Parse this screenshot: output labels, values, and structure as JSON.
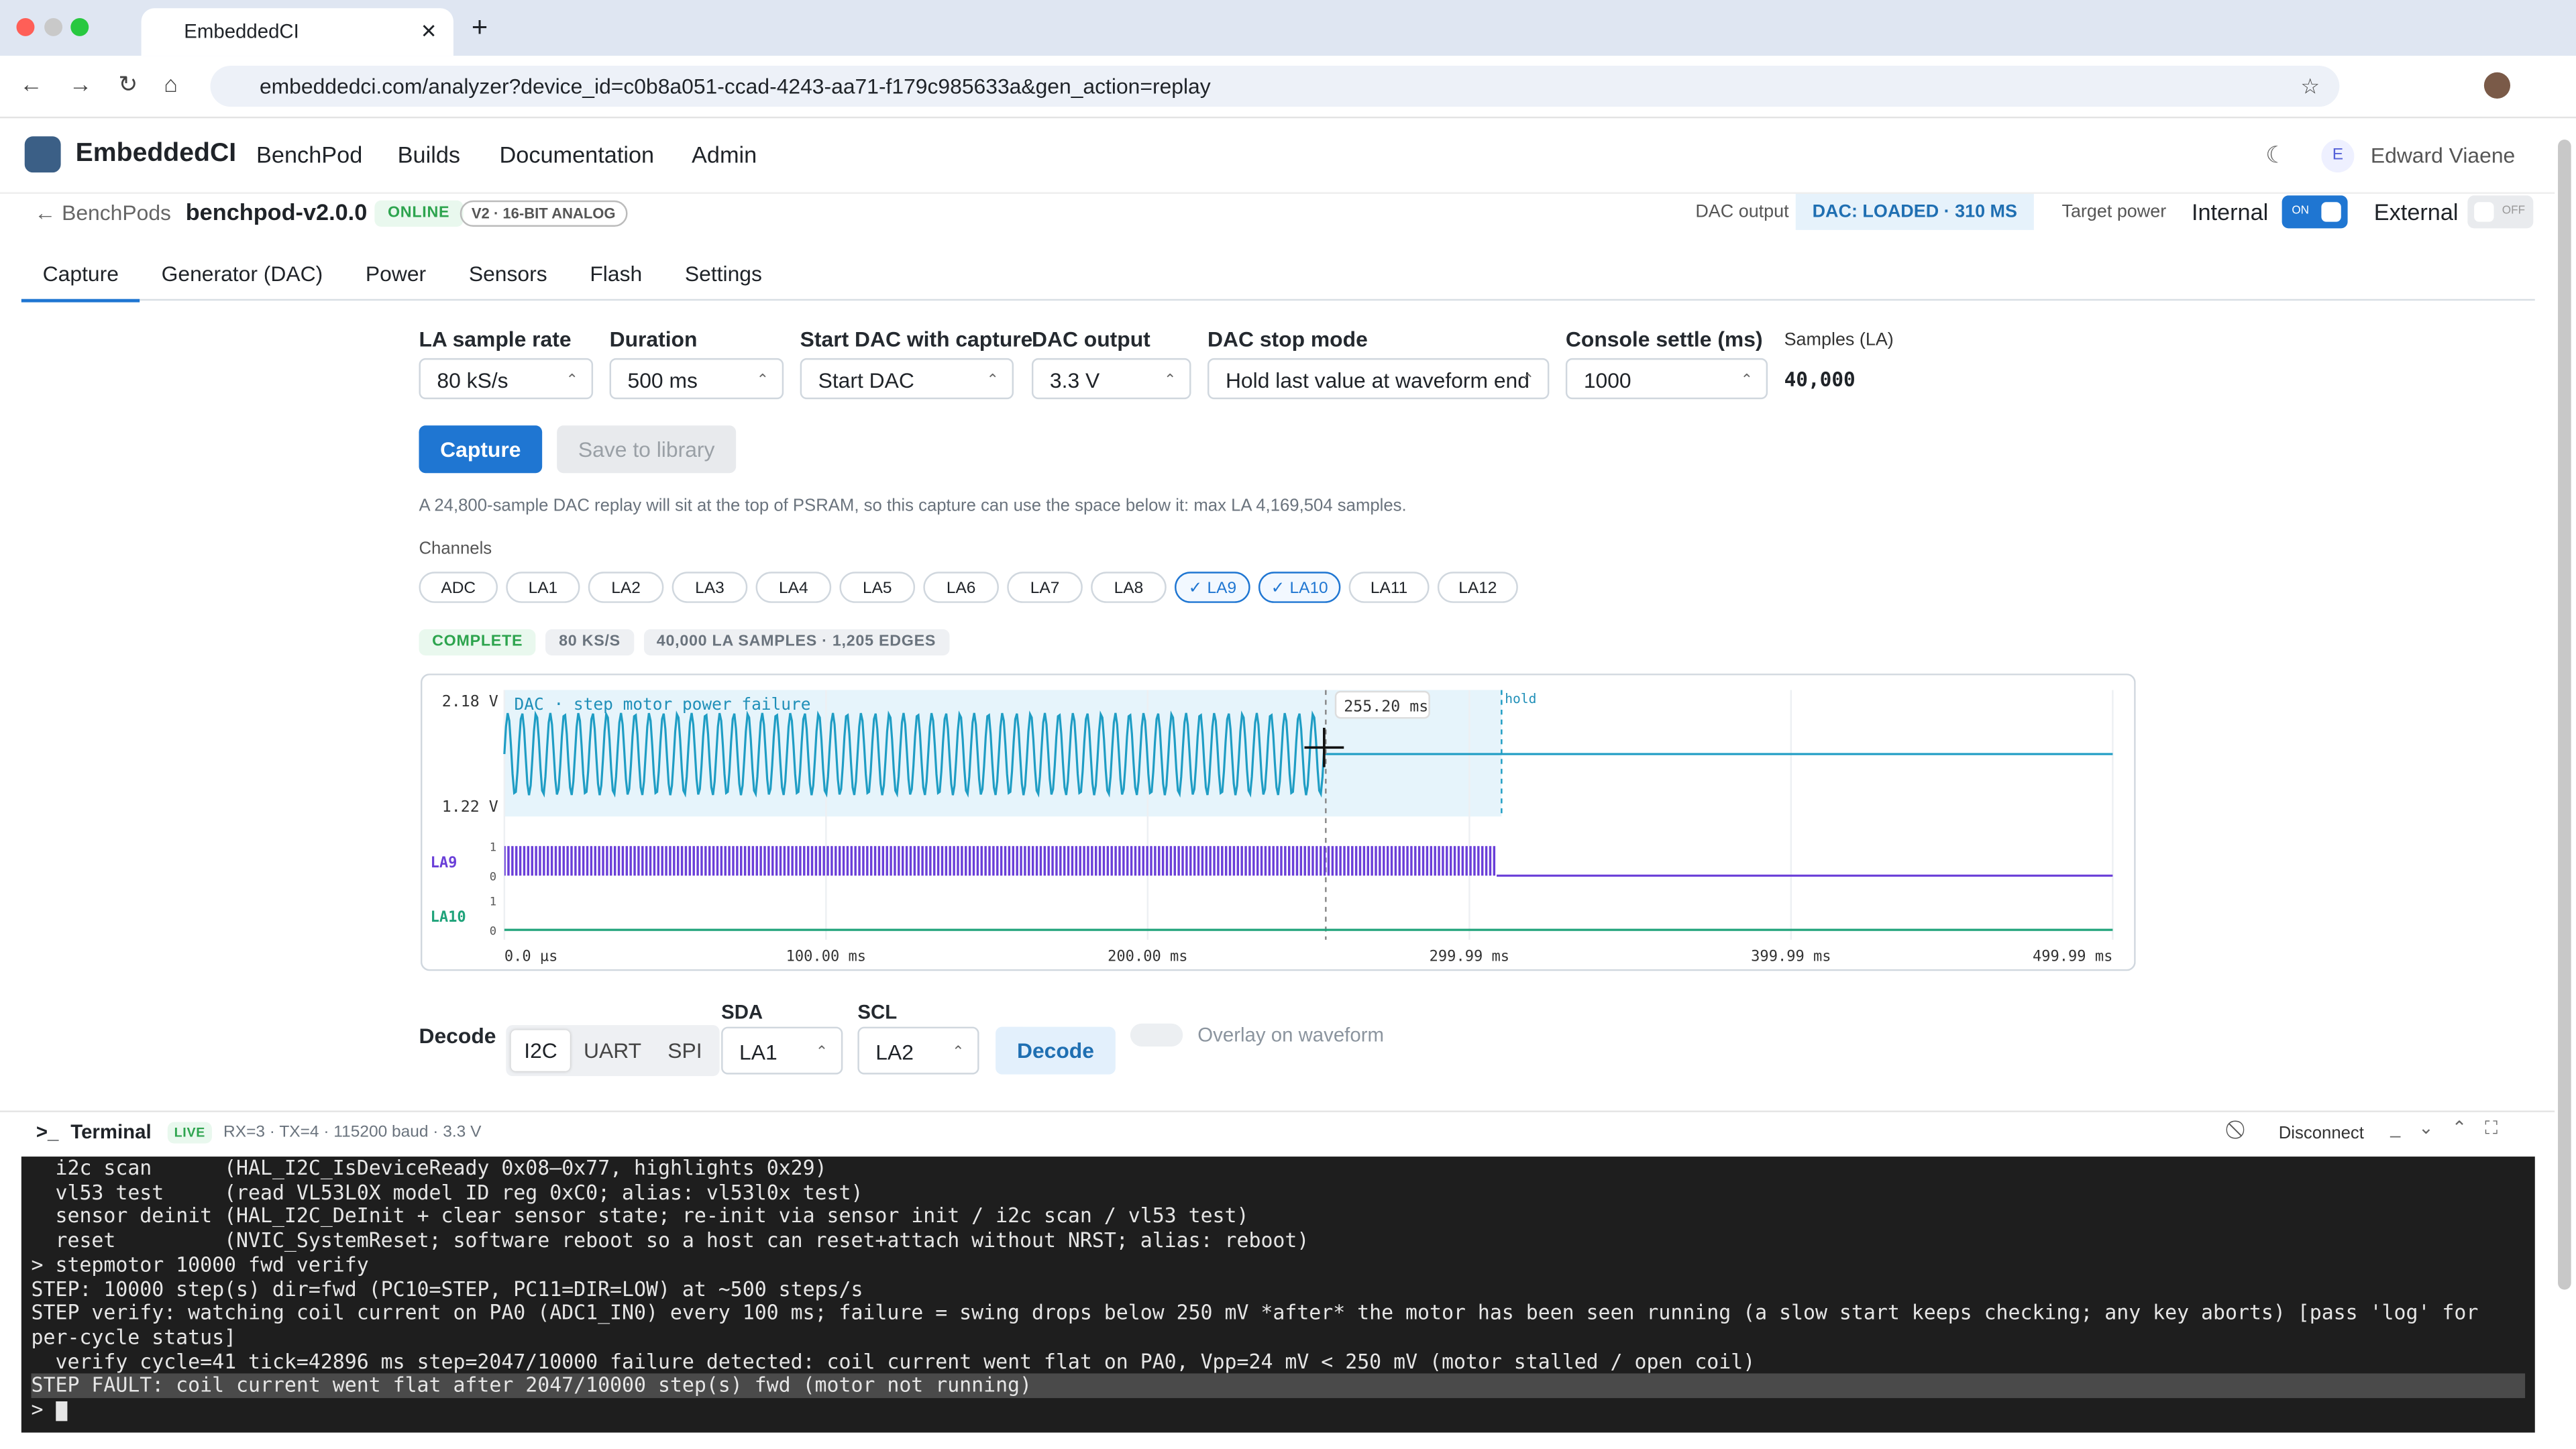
{
  "browser": {
    "tab_title": "EmbeddedCI",
    "url": "embeddedci.com/analyzer?device_id=c0b8a051-ccad-4243-aa71-f179c985633a&gen_action=replay"
  },
  "nav": {
    "brand": "EmbeddedCI",
    "links": [
      "BenchPod",
      "Builds",
      "Documentation",
      "Admin"
    ],
    "user_initial": "E",
    "user": "Edward Viaene"
  },
  "device": {
    "back": "← BenchPods",
    "name": "benchpod-v2.0.0",
    "status": "ONLINE",
    "version": "V2 · 16-BIT ANALOG",
    "dac_label": "DAC output",
    "dac_status": "DAC: LOADED · 310 MS",
    "target_power": "Target power",
    "internal": "Internal",
    "on": "ON",
    "external": "External",
    "off": "OFF"
  },
  "tabs": [
    "Capture",
    "Generator (DAC)",
    "Power",
    "Sensors",
    "Flash",
    "Settings"
  ],
  "form": {
    "fields": [
      {
        "label": "LA sample rate",
        "value": "80 kS/s"
      },
      {
        "label": "Duration",
        "value": "500 ms"
      },
      {
        "label": "Start DAC with capture",
        "value": "Start DAC"
      },
      {
        "label": "DAC output",
        "value": "3.3 V"
      },
      {
        "label": "DAC stop mode",
        "value": "Hold last value at waveform end"
      },
      {
        "label": "Console settle (ms)",
        "value": "1000"
      }
    ],
    "samples_label": "Samples (LA)",
    "samples": "40,000",
    "capture": "Capture",
    "save": "Save to library",
    "note": "A 24,800-sample DAC replay will sit at the top of PSRAM, so this capture can use the space below it: max LA 4,169,504 samples."
  },
  "channels": {
    "label": "Channels",
    "items": [
      {
        "name": "ADC",
        "selected": false
      },
      {
        "name": "LA1",
        "selected": false
      },
      {
        "name": "LA2",
        "selected": false
      },
      {
        "name": "LA3",
        "selected": false
      },
      {
        "name": "LA4",
        "selected": false
      },
      {
        "name": "LA5",
        "selected": false
      },
      {
        "name": "LA6",
        "selected": false
      },
      {
        "name": "LA7",
        "selected": false
      },
      {
        "name": "LA8",
        "selected": false
      },
      {
        "name": "LA9",
        "selected": true
      },
      {
        "name": "LA10",
        "selected": true
      },
      {
        "name": "LA11",
        "selected": false
      },
      {
        "name": "LA12",
        "selected": false
      }
    ]
  },
  "badges": [
    "COMPLETE",
    "80 KS/S",
    "40,000 LA SAMPLES · 1,205 EDGES"
  ],
  "waveform": {
    "y_top": "2.18 V",
    "y_bottom": "1.22 V",
    "title": "DAC · step motor power failure",
    "cursor": "255.20 ms",
    "hold": "hold",
    "channels": [
      {
        "name": "LA9",
        "high": "1",
        "low": "0"
      },
      {
        "name": "LA10",
        "high": "1",
        "low": "0"
      }
    ],
    "x_labels": [
      "0.0 µs",
      "100.00 ms",
      "200.00 ms",
      "299.99 ms",
      "399.99 ms",
      "499.99 ms"
    ]
  },
  "decode": {
    "label": "Decode",
    "protocols": [
      "I2C",
      "UART",
      "SPI"
    ],
    "sda_label": "SDA",
    "sda": "LA1",
    "scl_label": "SCL",
    "scl": "LA2",
    "button": "Decode",
    "overlay": "Overlay on waveform"
  },
  "terminal": {
    "title": "Terminal",
    "live": "LIVE",
    "info": "RX=3 · TX=4 · 115200 baud · 3.3 V",
    "disconnect": "Disconnect",
    "lines": [
      "  i2c scan      (HAL_I2C_IsDeviceReady 0x08–0x77, highlights 0x29)",
      "  vl53 test     (read VL53L0X model ID reg 0xC0; alias: vl53l0x test)",
      "  sensor deinit (HAL_I2C_DeInit + clear sensor state; re-init via sensor init / i2c scan / vl53 test)",
      "  reset         (NVIC_SystemReset; software reboot so a host can reset+attach without NRST; alias: reboot)",
      "> stepmotor 10000 fwd verify",
      "STEP: 10000 step(s) dir=fwd (PC10=STEP, PC11=DIR=LOW) at ~500 steps/s",
      "STEP verify: watching coil current on PA0 (ADC1_IN0) every 100 ms; failure = swing drops below 250 mV *after* the motor has been seen running (a slow start keeps checking; any key aborts) [pass 'log' for per-cycle status]",
      "  verify cycle=41 tick=42896 ms step=2047/10000 failure detected: coil current went flat on PA0, Vpp=24 mV < 250 mV (motor stalled / open coil)",
      "STEP FAULT: coil current went flat after 2047/10000 step(s) fwd (motor not running)"
    ],
    "prompt": ">"
  }
}
